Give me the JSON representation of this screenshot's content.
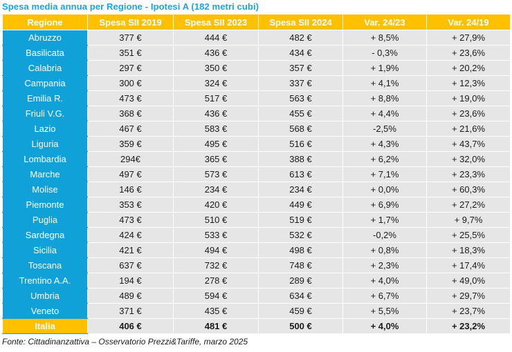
{
  "title": "Spesa media annua per Regione - Ipotesi A (182 metri cubi)",
  "columns": [
    "Regione",
    "Spesa SII 2019",
    "Spesa SII 2023",
    "Spesa SII 2024",
    "Var. 24/23",
    "Var. 24/19"
  ],
  "rows": [
    [
      "Abruzzo",
      "377 €",
      "444 €",
      "482 €",
      "+ 8,5%",
      "+ 27,9%"
    ],
    [
      "Basilicata",
      "351 €",
      "436 €",
      "434 €",
      "- 0,3%",
      "+ 23,6%"
    ],
    [
      "Calabria",
      "297 €",
      "350 €",
      "357 €",
      "+ 1,9%",
      "+ 20,2%"
    ],
    [
      "Campania",
      "300 €",
      "324 €",
      "337 €",
      "+ 4,1%",
      "+ 12,3%"
    ],
    [
      "Emilia R.",
      "473 €",
      "517 €",
      "563 €",
      "+ 8,8%",
      "+ 19,0%"
    ],
    [
      "Friuli V.G.",
      "368 €",
      "436 €",
      "455 €",
      "+ 4,4%",
      "+ 23,6%"
    ],
    [
      "Lazio",
      "467 €",
      "583 €",
      "568 €",
      "-2,5%",
      "+ 21,6%"
    ],
    [
      "Liguria",
      "359 €",
      "495 €",
      "516 €",
      "+ 4,3%",
      "+ 43,7%"
    ],
    [
      "Lombardia",
      "294€",
      "365 €",
      "388 €",
      "+ 6,2%",
      "+ 32,0%"
    ],
    [
      "Marche",
      "497 €",
      "573 €",
      "613 €",
      "+ 7,1%",
      "+ 23,3%"
    ],
    [
      "Molise",
      "146 €",
      "234 €",
      "234 €",
      "+ 0,0%",
      "+ 60,3%"
    ],
    [
      "Piemonte",
      "353 €",
      "420 €",
      "449 €",
      "+ 6,9%",
      "+ 27,2%"
    ],
    [
      "Puglia",
      "473 €",
      "510 €",
      "519 €",
      "+ 1,7%",
      "+ 9,7%"
    ],
    [
      "Sardegna",
      "424 €",
      "533 €",
      "532 €",
      "-0,2%",
      "+ 25,5%"
    ],
    [
      "Sicilia",
      "421 €",
      "494 €",
      "498 €",
      "+ 0,8%",
      "+ 18,3%"
    ],
    [
      "Toscana",
      "637 €",
      "732 €",
      "748 €",
      "+ 2,3%",
      "+ 17,4%"
    ],
    [
      "Trentino A.A.",
      "194 €",
      "278 €",
      "289 €",
      "+ 4,0%",
      "+ 49,0%"
    ],
    [
      "Umbria",
      "489 €",
      "594 €",
      "634 €",
      "+ 6,7%",
      "+ 29,7%"
    ],
    [
      "Veneto",
      "371 €",
      "435 €",
      "459 €",
      "+ 5,5%",
      "+ 23,7%"
    ]
  ],
  "total": [
    "Italia",
    "406 €",
    "481 €",
    "500 €",
    "+ 4,0%",
    "+ 23,2%"
  ],
  "footnote": "Fonte: Cittadinanzattiva – Osservatorio Prezzi&Tariffe, marzo 2025",
  "colors": {
    "title": "#1aa3dc",
    "header": "#ffc000",
    "region": "#10a1d8",
    "cell": "#e6e6e6"
  }
}
